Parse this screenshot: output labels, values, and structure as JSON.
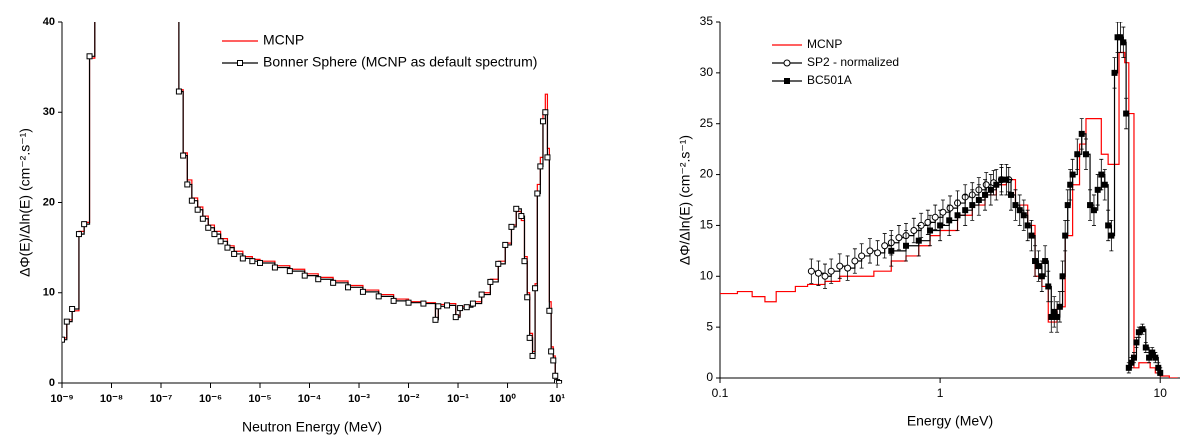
{
  "chart_data": [
    {
      "type": "line",
      "drawstyle": "steps-post",
      "xscale": "log",
      "xlabel": "Neutron Energy (MeV)",
      "ylabel": "ΔΦ(E)/Δln(E) (cm⁻².s⁻¹)",
      "xlim": [
        1e-09,
        12.6
      ],
      "ylim": [
        0,
        40
      ],
      "xticks": [
        {
          "value": 1e-09,
          "label": "10⁻⁹"
        },
        {
          "value": 1e-08,
          "label": "10⁻⁸"
        },
        {
          "value": 1e-07,
          "label": "10⁻⁷"
        },
        {
          "value": 1e-06,
          "label": "10⁻⁶"
        },
        {
          "value": 1e-05,
          "label": "10⁻⁵"
        },
        {
          "value": 0.0001,
          "label": "10⁻⁴"
        },
        {
          "value": 0.001,
          "label": "10⁻³"
        },
        {
          "value": 0.01,
          "label": "10⁻²"
        },
        {
          "value": 0.1,
          "label": "10⁻¹"
        },
        {
          "value": 1,
          "label": "10⁰"
        },
        {
          "value": 10,
          "label": "10¹"
        }
      ],
      "yticks": [
        0,
        10,
        20,
        30,
        40
      ],
      "x": [
        1e-09,
        1.25e-09,
        1.6e-09,
        2.2e-09,
        2.8e-09,
        3.6e-09,
        4.6e-09,
        2.3e-07,
        2.8e-07,
        3.4e-07,
        4.2e-07,
        5.5e-07,
        7e-07,
        9e-07,
        1.2e-06,
        1.6e-06,
        2.2e-06,
        3e-06,
        4.5e-06,
        7e-06,
        1e-05,
        2e-05,
        4e-05,
        8e-05,
        0.00015,
        0.0003,
        0.0006,
        0.0012,
        0.0025,
        0.005,
        0.01,
        0.02,
        0.035,
        0.04,
        0.06,
        0.09,
        0.11,
        0.15,
        0.2,
        0.3,
        0.45,
        0.65,
        0.9,
        1.2,
        1.5,
        1.9,
        2.2,
        2.5,
        2.8,
        3.2,
        3.6,
        4,
        4.6,
        5.2,
        5.8,
        6.4,
        7,
        7.6,
        8.4,
        9.2,
        10,
        11
      ],
      "legend": "upper-center",
      "series": [
        {
          "name": "MCNP",
          "color": "#ff0000",
          "marker": "none",
          "values": [
            5,
            7,
            8,
            16.8,
            17.8,
            36,
            60,
            32.5,
            25.5,
            22.5,
            20.5,
            19.5,
            18.5,
            17.5,
            16.8,
            16,
            15.2,
            14.6,
            14,
            13.7,
            13.5,
            13,
            12.6,
            12.1,
            11.7,
            11.3,
            10.8,
            10.3,
            9.8,
            9.3,
            9,
            8.9,
            7.2,
            8.7,
            8.8,
            7.5,
            8.5,
            8.6,
            9,
            10,
            11.5,
            13.5,
            15.5,
            17.5,
            19,
            18,
            14,
            10,
            5.5,
            3.5,
            11,
            22,
            25,
            30,
            32,
            26,
            9,
            4,
            3,
            1,
            0.2,
            0
          ]
        },
        {
          "name": "Bonner Sphere (MCNP as default spectrum)",
          "color": "#000000",
          "marker": "square",
          "values": [
            4.8,
            6.8,
            8.2,
            16.5,
            17.6,
            36.2,
            60,
            32.3,
            25.2,
            22,
            20.2,
            19.2,
            18.2,
            17.2,
            16.5,
            15.7,
            15,
            14.3,
            13.8,
            13.5,
            13.3,
            12.8,
            12.4,
            11.9,
            11.5,
            11.1,
            10.6,
            10.1,
            9.6,
            9.1,
            8.9,
            8.8,
            7,
            8.5,
            8.6,
            7.3,
            8.3,
            8.4,
            8.8,
            9.8,
            11.2,
            13.2,
            15.3,
            17.3,
            19.3,
            18.5,
            13.5,
            9.5,
            5,
            3,
            10.5,
            21,
            24,
            29,
            30,
            25,
            8,
            3.5,
            2.5,
            0.8,
            0.1,
            0
          ]
        }
      ]
    },
    {
      "type": "line",
      "drawstyle": "steps-post",
      "xscale": "log",
      "xlabel": "Energy (MeV)",
      "ylabel": "ΔΦ/Δln(E) (cm⁻².s⁻¹)",
      "xlim": [
        0.1,
        12.3
      ],
      "ylim": [
        0,
        35
      ],
      "xticks": [
        0.1,
        1,
        10
      ],
      "yticks": [
        0,
        5,
        10,
        15,
        20,
        25,
        30,
        35
      ],
      "legend": "upper-left",
      "series": [
        {
          "name": "MCNP",
          "color": "#ff0000",
          "marker": "none",
          "x": [
            0.1,
            0.12,
            0.14,
            0.16,
            0.18,
            0.2,
            0.22,
            0.25,
            0.3,
            0.35,
            0.4,
            0.5,
            0.6,
            0.7,
            0.8,
            0.9,
            1,
            1.2,
            1.4,
            1.6,
            1.8,
            2,
            2.2,
            2.5,
            2.7,
            2.9,
            3.1,
            3.4,
            3.7,
            4,
            4.3,
            4.6,
            5,
            5.4,
            5.8,
            6.2,
            6.5,
            6.9,
            7.2,
            7.6,
            8,
            8.5,
            9,
            9.5,
            10,
            11,
            12
          ],
          "values": [
            8.3,
            8.5,
            8,
            7.5,
            8.5,
            8.5,
            9,
            9.2,
            9.5,
            10,
            10,
            10.5,
            11.5,
            12,
            13,
            14,
            14.5,
            16,
            17,
            18,
            19,
            19.5,
            17,
            15,
            10,
            9,
            5.5,
            7,
            14,
            19,
            23,
            25.5,
            25.5,
            22,
            21,
            21,
            32,
            31,
            26,
            1,
            1.5,
            1.5,
            1,
            0.5,
            0.2,
            0,
            0
          ]
        },
        {
          "name": "SP2 - normalized",
          "color": "#000000",
          "marker": "circle",
          "x": [
            0.26,
            0.28,
            0.3,
            0.32,
            0.35,
            0.38,
            0.41,
            0.44,
            0.48,
            0.52,
            0.56,
            0.6,
            0.65,
            0.7,
            0.76,
            0.82,
            0.88,
            0.95,
            1.03,
            1.11,
            1.2,
            1.3,
            1.4,
            1.5,
            1.62,
            1.75,
            1.9,
            2.05
          ],
          "values": [
            10.5,
            10.3,
            10,
            10.5,
            11,
            10.8,
            11.5,
            12,
            12.5,
            12.3,
            13,
            13.3,
            13.8,
            14,
            14.5,
            15,
            15.3,
            15.8,
            16.3,
            16.7,
            17.2,
            17.8,
            18,
            18.5,
            19,
            19.2,
            19.5,
            19.5
          ],
          "errors": [
            1.2,
            1.2,
            1.2,
            1.2,
            1.2,
            1.2,
            1.2,
            1.2,
            1.2,
            1.2,
            1.2,
            1.2,
            1.2,
            1.2,
            1.2,
            1.2,
            1.2,
            1.2,
            1.2,
            1.2,
            1.2,
            1.2,
            1.2,
            1.2,
            1.2,
            1.2,
            1.2,
            1.2
          ]
        },
        {
          "name": "BC501A",
          "color": "#000000",
          "marker": "filled-square",
          "x": [
            0.6,
            0.7,
            0.8,
            0.9,
            1,
            1.1,
            1.2,
            1.3,
            1.4,
            1.5,
            1.6,
            1.7,
            1.8,
            1.9,
            2,
            2.1,
            2.2,
            2.3,
            2.4,
            2.5,
            2.6,
            2.7,
            2.8,
            2.9,
            3,
            3.1,
            3.2,
            3.3,
            3.4,
            3.5,
            3.6,
            3.7,
            3.8,
            3.9,
            4,
            4.2,
            4.4,
            4.6,
            4.8,
            5,
            5.2,
            5.4,
            5.6,
            5.8,
            6,
            6.2,
            6.4,
            6.6,
            6.8,
            7,
            7.2,
            7.4,
            7.6,
            7.8,
            8,
            8.3,
            8.6,
            8.9,
            9.2,
            9.5,
            9.8,
            10
          ],
          "values": [
            12.5,
            13,
            13.5,
            14.5,
            15,
            15.5,
            16,
            16.5,
            17,
            17.5,
            18,
            18.5,
            19,
            19.5,
            19.5,
            18,
            17,
            16.5,
            16,
            15,
            14,
            11.5,
            11,
            10,
            11.5,
            9,
            6,
            6.5,
            6,
            7,
            10,
            14,
            17,
            19,
            20,
            22,
            24,
            22,
            17,
            16.5,
            18.5,
            20,
            19,
            15,
            14,
            30,
            33.5,
            33.5,
            33,
            26,
            1,
            1.5,
            2,
            3.5,
            4.5,
            4.8,
            3,
            2,
            2.5,
            2,
            1,
            0.5
          ],
          "errors": [
            1.5,
            1.5,
            1.5,
            1.5,
            1.5,
            1.5,
            1.5,
            1.5,
            1.5,
            1.5,
            1.5,
            1.5,
            1.5,
            1.5,
            1.5,
            1.5,
            1.5,
            1.5,
            1.5,
            1.5,
            1.5,
            1.5,
            1.5,
            1.5,
            1.5,
            1.5,
            1.5,
            1.5,
            1.5,
            1.5,
            1.5,
            1.5,
            1.5,
            1.5,
            1.5,
            1.5,
            1.5,
            1.5,
            1.5,
            1.5,
            1.5,
            1.5,
            1.5,
            1.5,
            1.5,
            1.5,
            1.5,
            1.5,
            1.5,
            1.5,
            0.5,
            0.5,
            0.5,
            0.5,
            0.5,
            0.5,
            0.5,
            0.5,
            0.5,
            0.5,
            0.5,
            0.5
          ]
        }
      ]
    }
  ]
}
